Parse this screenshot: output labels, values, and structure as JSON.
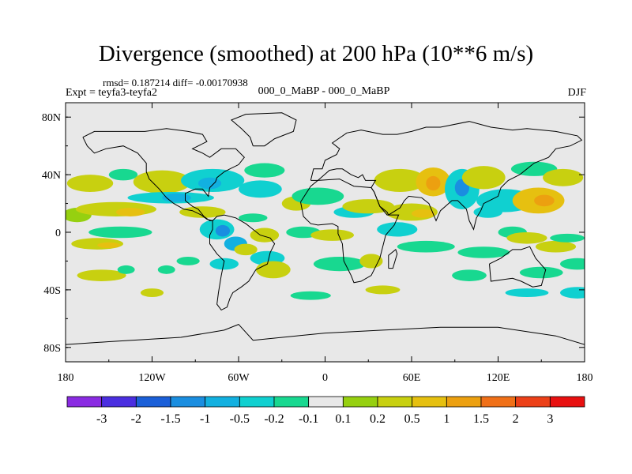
{
  "chart_data": {
    "type": "heatmap",
    "title": "Divergence (smoothed) at 200 hPa (10**6 m/s)",
    "stats_text": "rmsd= 0.187214  diff= -0.00170938",
    "expt_text": "Expt = teyfa3-teyfa2",
    "case_text": "000_0_MaBP - 000_0_MaBP",
    "season": "DJF",
    "x_ticks": [
      {
        "value": -180,
        "label": "180"
      },
      {
        "value": -120,
        "label": "120W"
      },
      {
        "value": -60,
        "label": "60W"
      },
      {
        "value": 0,
        "label": "0"
      },
      {
        "value": 60,
        "label": "60E"
      },
      {
        "value": 120,
        "label": "120E"
      },
      {
        "value": 180,
        "label": "180"
      }
    ],
    "y_ticks": [
      {
        "value": 80,
        "label": "80N"
      },
      {
        "value": 40,
        "label": "40N"
      },
      {
        "value": 0,
        "label": "0"
      },
      {
        "value": -40,
        "label": "40S"
      },
      {
        "value": -80,
        "label": "80S"
      }
    ],
    "xlim": [
      -180,
      180
    ],
    "ylim": [
      -90,
      90
    ],
    "colorbar": {
      "colors": [
        "#8a2be2",
        "#4a2ee0",
        "#1a5fd8",
        "#1a8ee0",
        "#12b0e0",
        "#10d0d0",
        "#18d890",
        "#e8e8e8",
        "#96d010",
        "#c8d010",
        "#e6c010",
        "#eca010",
        "#f07018",
        "#ec4018",
        "#e81010"
      ],
      "labels": [
        "-3",
        "-2",
        "-1.5",
        "-1",
        "-0.5",
        "-0.2",
        "-0.1",
        "0.1",
        "0.2",
        "0.5",
        "1",
        "1.5",
        "2",
        "3"
      ]
    },
    "field_blobs": [
      {
        "lon": -163,
        "lat": 34,
        "rx": 16,
        "ry": 6,
        "value": 0.35
      },
      {
        "lon": -172,
        "lat": 12,
        "rx": 10,
        "ry": 5,
        "value": 0.15
      },
      {
        "lon": -145,
        "lat": 16,
        "rx": 28,
        "ry": 5,
        "value": 0.3
      },
      {
        "lon": -135,
        "lat": 14,
        "rx": 10,
        "ry": 3,
        "value": 0.6
      },
      {
        "lon": -142,
        "lat": 0,
        "rx": 22,
        "ry": 4,
        "value": -0.15
      },
      {
        "lon": -158,
        "lat": -8,
        "rx": 18,
        "ry": 4,
        "value": 0.3
      },
      {
        "lon": -150,
        "lat": -9,
        "rx": 8,
        "ry": 2,
        "value": 0.7
      },
      {
        "lon": -155,
        "lat": -30,
        "rx": 17,
        "ry": 4,
        "value": 0.25
      },
      {
        "lon": -110,
        "lat": -26,
        "rx": 6,
        "ry": 3,
        "value": -0.15
      },
      {
        "lon": -138,
        "lat": -26,
        "rx": 6,
        "ry": 3,
        "value": -0.15
      },
      {
        "lon": -140,
        "lat": 40,
        "rx": 10,
        "ry": 4,
        "value": -0.15
      },
      {
        "lon": -113,
        "lat": 35,
        "rx": 20,
        "ry": 8,
        "value": 0.3
      },
      {
        "lon": -107,
        "lat": 24,
        "rx": 30,
        "ry": 4,
        "value": -0.3
      },
      {
        "lon": -103,
        "lat": 24,
        "rx": 10,
        "ry": 3,
        "value": -0.6
      },
      {
        "lon": -78,
        "lat": 36,
        "rx": 22,
        "ry": 8,
        "value": -0.4
      },
      {
        "lon": -80,
        "lat": 34,
        "rx": 8,
        "ry": 4,
        "value": -0.8
      },
      {
        "lon": -85,
        "lat": 14,
        "rx": 16,
        "ry": 4,
        "value": 0.3
      },
      {
        "lon": -75,
        "lat": 2,
        "rx": 12,
        "ry": 7,
        "value": -0.5
      },
      {
        "lon": -71,
        "lat": 1,
        "rx": 5,
        "ry": 4,
        "value": -1.2
      },
      {
        "lon": -62,
        "lat": -8,
        "rx": 8,
        "ry": 5,
        "value": -0.6
      },
      {
        "lon": -55,
        "lat": -12,
        "rx": 8,
        "ry": 4,
        "value": 0.3
      },
      {
        "lon": -42,
        "lat": -2,
        "rx": 10,
        "ry": 5,
        "value": 0.3
      },
      {
        "lon": -50,
        "lat": 10,
        "rx": 10,
        "ry": 3,
        "value": -0.2
      },
      {
        "lon": -70,
        "lat": -22,
        "rx": 10,
        "ry": 4,
        "value": -0.3
      },
      {
        "lon": -40,
        "lat": -18,
        "rx": 12,
        "ry": 5,
        "value": -0.5
      },
      {
        "lon": -36,
        "lat": -26,
        "rx": 12,
        "ry": 6,
        "value": 0.35
      },
      {
        "lon": -95,
        "lat": -20,
        "rx": 8,
        "ry": 3,
        "value": -0.15
      },
      {
        "lon": -10,
        "lat": -44,
        "rx": 14,
        "ry": 3,
        "value": -0.2
      },
      {
        "lon": -42,
        "lat": 43,
        "rx": 14,
        "ry": 5,
        "value": -0.2
      },
      {
        "lon": -45,
        "lat": 30,
        "rx": 15,
        "ry": 6,
        "value": -0.4
      },
      {
        "lon": -20,
        "lat": 20,
        "rx": 10,
        "ry": 5,
        "value": 0.35
      },
      {
        "lon": -5,
        "lat": 25,
        "rx": 18,
        "ry": 6,
        "value": -0.15
      },
      {
        "lon": -15,
        "lat": 0,
        "rx": 12,
        "ry": 4,
        "value": -0.2
      },
      {
        "lon": 5,
        "lat": -2,
        "rx": 15,
        "ry": 4,
        "value": 0.35
      },
      {
        "lon": 20,
        "lat": 14,
        "rx": 14,
        "ry": 4,
        "value": -0.3
      },
      {
        "lon": 10,
        "lat": -22,
        "rx": 18,
        "ry": 5,
        "value": -0.2
      },
      {
        "lon": 32,
        "lat": -20,
        "rx": 8,
        "ry": 5,
        "value": 0.25
      },
      {
        "lon": 30,
        "lat": 18,
        "rx": 18,
        "ry": 5,
        "value": 0.25
      },
      {
        "lon": 50,
        "lat": 2,
        "rx": 14,
        "ry": 5,
        "value": -0.5
      },
      {
        "lon": 70,
        "lat": -10,
        "rx": 20,
        "ry": 4,
        "value": -0.2
      },
      {
        "lon": 60,
        "lat": 14,
        "rx": 18,
        "ry": 6,
        "value": 0.4
      },
      {
        "lon": 68,
        "lat": 13,
        "rx": 8,
        "ry": 3,
        "value": 0.9
      },
      {
        "lon": 52,
        "lat": 36,
        "rx": 18,
        "ry": 8,
        "value": 0.3
      },
      {
        "lon": 75,
        "lat": 35,
        "rx": 12,
        "ry": 10,
        "value": 0.6
      },
      {
        "lon": 75,
        "lat": 34,
        "rx": 5,
        "ry": 5,
        "value": 1.2
      },
      {
        "lon": 95,
        "lat": 30,
        "rx": 12,
        "ry": 14,
        "value": -0.5
      },
      {
        "lon": 95,
        "lat": 31,
        "rx": 5,
        "ry": 6,
        "value": -1.2
      },
      {
        "lon": 110,
        "lat": 38,
        "rx": 15,
        "ry": 8,
        "value": 0.3
      },
      {
        "lon": 113,
        "lat": 14,
        "rx": 10,
        "ry": 4,
        "value": -0.3
      },
      {
        "lon": 125,
        "lat": 22,
        "rx": 20,
        "ry": 8,
        "value": -0.4
      },
      {
        "lon": 148,
        "lat": 22,
        "rx": 18,
        "ry": 9,
        "value": 0.5
      },
      {
        "lon": 152,
        "lat": 22,
        "rx": 7,
        "ry": 4,
        "value": 1.1
      },
      {
        "lon": 145,
        "lat": 44,
        "rx": 16,
        "ry": 5,
        "value": -0.2
      },
      {
        "lon": 165,
        "lat": 38,
        "rx": 14,
        "ry": 6,
        "value": 0.3
      },
      {
        "lon": 110,
        "lat": -14,
        "rx": 18,
        "ry": 4,
        "value": -0.15
      },
      {
        "lon": 130,
        "lat": 0,
        "rx": 10,
        "ry": 4,
        "value": -0.2
      },
      {
        "lon": 140,
        "lat": -4,
        "rx": 14,
        "ry": 4,
        "value": 0.3
      },
      {
        "lon": 160,
        "lat": -10,
        "rx": 14,
        "ry": 4,
        "value": 0.35
      },
      {
        "lon": 168,
        "lat": -4,
        "rx": 12,
        "ry": 3,
        "value": -0.2
      },
      {
        "lon": 175,
        "lat": -22,
        "rx": 12,
        "ry": 4,
        "value": -0.2
      },
      {
        "lon": 150,
        "lat": -28,
        "rx": 15,
        "ry": 4,
        "value": -0.15
      },
      {
        "lon": 140,
        "lat": -42,
        "rx": 15,
        "ry": 3,
        "value": -0.3
      },
      {
        "lon": 175,
        "lat": -42,
        "rx": 12,
        "ry": 4,
        "value": -0.4
      },
      {
        "lon": 100,
        "lat": -30,
        "rx": 12,
        "ry": 4,
        "value": -0.15
      },
      {
        "lon": -120,
        "lat": -42,
        "rx": 8,
        "ry": 3,
        "value": 0.2
      },
      {
        "lon": 40,
        "lat": -40,
        "rx": 12,
        "ry": 3,
        "value": 0.25
      }
    ],
    "coastlines": [
      [
        [
          -168,
          66
        ],
        [
          -160,
          70
        ],
        [
          -140,
          70
        ],
        [
          -125,
          70
        ],
        [
          -110,
          72
        ],
        [
          -95,
          70
        ],
        [
          -85,
          68
        ],
        [
          -82,
          63
        ],
        [
          -92,
          58
        ],
        [
          -85,
          55
        ],
        [
          -80,
          52
        ],
        [
          -72,
          58
        ],
        [
          -62,
          58
        ],
        [
          -56,
          52
        ],
        [
          -60,
          47
        ],
        [
          -66,
          44
        ],
        [
          -70,
          42
        ],
        [
          -75,
          38
        ],
        [
          -76,
          35
        ],
        [
          -80,
          31
        ],
        [
          -81,
          25
        ],
        [
          -85,
          30
        ],
        [
          -90,
          30
        ],
        [
          -97,
          27
        ],
        [
          -97,
          22
        ],
        [
          -92,
          18
        ],
        [
          -88,
          16
        ],
        [
          -84,
          11
        ],
        [
          -80,
          8
        ],
        [
          -78,
          8
        ],
        [
          -82,
          9
        ],
        [
          -86,
          12
        ],
        [
          -92,
          15
        ],
        [
          -98,
          16
        ],
        [
          -105,
          20
        ],
        [
          -110,
          24
        ],
        [
          -115,
          30
        ],
        [
          -118,
          33
        ],
        [
          -122,
          37
        ],
        [
          -124,
          42
        ],
        [
          -124,
          48
        ],
        [
          -130,
          55
        ],
        [
          -140,
          60
        ],
        [
          -152,
          58
        ],
        [
          -160,
          55
        ],
        [
          -165,
          60
        ],
        [
          -168,
          66
        ]
      ],
      [
        [
          -78,
          8
        ],
        [
          -75,
          11
        ],
        [
          -70,
          12
        ],
        [
          -62,
          10
        ],
        [
          -55,
          6
        ],
        [
          -50,
          2
        ],
        [
          -45,
          -2
        ],
        [
          -38,
          -4
        ],
        [
          -35,
          -8
        ],
        [
          -38,
          -14
        ],
        [
          -40,
          -22
        ],
        [
          -48,
          -26
        ],
        [
          -53,
          -34
        ],
        [
          -58,
          -38
        ],
        [
          -64,
          -42
        ],
        [
          -66,
          -46
        ],
        [
          -68,
          -52
        ],
        [
          -72,
          -54
        ],
        [
          -75,
          -50
        ],
        [
          -74,
          -42
        ],
        [
          -72,
          -30
        ],
        [
          -70,
          -20
        ],
        [
          -75,
          -15
        ],
        [
          -80,
          -8
        ],
        [
          -80,
          -2
        ],
        [
          -78,
          2
        ],
        [
          -78,
          8
        ]
      ],
      [
        [
          -50,
          60
        ],
        [
          -42,
          60
        ],
        [
          -35,
          65
        ],
        [
          -22,
          70
        ],
        [
          -20,
          78
        ],
        [
          -30,
          83
        ],
        [
          -55,
          82
        ],
        [
          -65,
          78
        ],
        [
          -58,
          72
        ],
        [
          -52,
          66
        ],
        [
          -50,
          60
        ]
      ],
      [
        [
          -10,
          36
        ],
        [
          -8,
          44
        ],
        [
          -2,
          44
        ],
        [
          0,
          50
        ],
        [
          8,
          54
        ],
        [
          10,
          58
        ],
        [
          5,
          62
        ],
        [
          15,
          69
        ],
        [
          25,
          71
        ],
        [
          40,
          68
        ],
        [
          50,
          68
        ],
        [
          60,
          70
        ],
        [
          70,
          73
        ],
        [
          80,
          73
        ],
        [
          100,
          77
        ],
        [
          115,
          73
        ],
        [
          130,
          71
        ],
        [
          140,
          72
        ],
        [
          160,
          70
        ],
        [
          175,
          67
        ],
        [
          178,
          64
        ],
        [
          170,
          60
        ],
        [
          160,
          58
        ],
        [
          155,
          52
        ],
        [
          145,
          48
        ],
        [
          140,
          44
        ],
        [
          135,
          40
        ],
        [
          127,
          36
        ],
        [
          122,
          31
        ],
        [
          120,
          25
        ],
        [
          110,
          20
        ],
        [
          108,
          15
        ],
        [
          105,
          10
        ],
        [
          103,
          2
        ],
        [
          100,
          8
        ],
        [
          98,
          16
        ],
        [
          92,
          22
        ],
        [
          88,
          22
        ],
        [
          80,
          15
        ],
        [
          77,
          8
        ],
        [
          72,
          20
        ],
        [
          67,
          24
        ],
        [
          58,
          25
        ],
        [
          55,
          22
        ],
        [
          52,
          17
        ],
        [
          44,
          12
        ],
        [
          43,
          14
        ],
        [
          38,
          18
        ],
        [
          34,
          28
        ],
        [
          32,
          31
        ],
        [
          35,
          36
        ],
        [
          28,
          36
        ],
        [
          26,
          40
        ],
        [
          23,
          38
        ],
        [
          18,
          40
        ],
        [
          12,
          44
        ],
        [
          8,
          44
        ],
        [
          3,
          43
        ],
        [
          -5,
          36
        ],
        [
          -10,
          36
        ]
      ],
      [
        [
          -17,
          21
        ],
        [
          -10,
          32
        ],
        [
          -5,
          36
        ],
        [
          10,
          37
        ],
        [
          20,
          32
        ],
        [
          32,
          31
        ],
        [
          34,
          28
        ],
        [
          38,
          18
        ],
        [
          43,
          12
        ],
        [
          51,
          12
        ],
        [
          48,
          5
        ],
        [
          42,
          -2
        ],
        [
          40,
          -10
        ],
        [
          38,
          -18
        ],
        [
          35,
          -24
        ],
        [
          32,
          -30
        ],
        [
          25,
          -34
        ],
        [
          20,
          -35
        ],
        [
          18,
          -30
        ],
        [
          13,
          -20
        ],
        [
          12,
          -8
        ],
        [
          9,
          -1
        ],
        [
          9,
          4
        ],
        [
          5,
          6
        ],
        [
          -5,
          5
        ],
        [
          -10,
          6
        ],
        [
          -15,
          11
        ],
        [
          -17,
          21
        ]
      ],
      [
        [
          44,
          -25
        ],
        [
          47,
          -25
        ],
        [
          50,
          -15
        ],
        [
          49,
          -12
        ],
        [
          44,
          -16
        ],
        [
          44,
          -25
        ]
      ],
      [
        [
          114,
          -22
        ],
        [
          122,
          -18
        ],
        [
          130,
          -12
        ],
        [
          136,
          -12
        ],
        [
          142,
          -10
        ],
        [
          146,
          -18
        ],
        [
          153,
          -26
        ],
        [
          150,
          -37
        ],
        [
          144,
          -38
        ],
        [
          136,
          -34
        ],
        [
          130,
          -32
        ],
        [
          115,
          -34
        ],
        [
          114,
          -22
        ]
      ],
      [
        [
          -180,
          -78
        ],
        [
          -150,
          -76
        ],
        [
          -100,
          -73
        ],
        [
          -70,
          -68
        ],
        [
          -60,
          -64
        ],
        [
          -50,
          -75
        ],
        [
          -20,
          -72
        ],
        [
          0,
          -70
        ],
        [
          40,
          -68
        ],
        [
          80,
          -66
        ],
        [
          120,
          -66
        ],
        [
          160,
          -72
        ],
        [
          180,
          -78
        ]
      ]
    ]
  }
}
